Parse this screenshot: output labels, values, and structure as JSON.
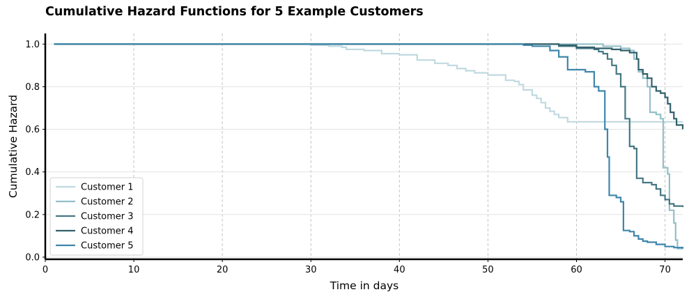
{
  "chart_data": {
    "type": "line",
    "title": "Cumulative Hazard Functions for 5 Example Customers",
    "xlabel": "Time in days",
    "ylabel": "Cumulative Hazard",
    "xlim": [
      0,
      72
    ],
    "ylim": [
      -0.01,
      1.05
    ],
    "x_ticks": [
      0,
      10,
      20,
      30,
      40,
      50,
      60,
      70
    ],
    "y_ticks": [
      "0.0",
      "0.2",
      "0.4",
      "0.6",
      "0.8",
      "1.0"
    ],
    "x_grid": "dashed",
    "y_grid": "solid",
    "legend_position": "lower-left",
    "series": [
      {
        "name": "Customer 1",
        "color": "#c0d9e0",
        "points": [
          [
            1,
            1.0
          ],
          [
            27,
            1.0
          ],
          [
            30,
            0.995
          ],
          [
            32,
            0.99
          ],
          [
            33.5,
            0.985
          ],
          [
            34,
            0.975
          ],
          [
            36,
            0.97
          ],
          [
            38,
            0.955
          ],
          [
            40,
            0.95
          ],
          [
            42,
            0.925
          ],
          [
            44,
            0.91
          ],
          [
            45.5,
            0.9
          ],
          [
            46.5,
            0.885
          ],
          [
            47.5,
            0.875
          ],
          [
            48.5,
            0.865
          ],
          [
            50,
            0.855
          ],
          [
            51.5,
            0.855
          ],
          [
            52,
            0.83
          ],
          [
            53,
            0.825
          ],
          [
            53.5,
            0.81
          ],
          [
            54,
            0.785
          ],
          [
            55,
            0.76
          ],
          [
            55.5,
            0.745
          ],
          [
            56,
            0.725
          ],
          [
            56.5,
            0.7
          ],
          [
            57,
            0.685
          ],
          [
            57.5,
            0.67
          ],
          [
            58,
            0.655
          ],
          [
            59,
            0.635
          ],
          [
            72,
            0.635
          ]
        ]
      },
      {
        "name": "Customer 2",
        "color": "#93bfc8",
        "points": [
          [
            1,
            1.0
          ],
          [
            60,
            1.0
          ],
          [
            63,
            0.99
          ],
          [
            65,
            0.98
          ],
          [
            66,
            0.97
          ],
          [
            66.5,
            0.93
          ],
          [
            67,
            0.87
          ],
          [
            67.5,
            0.84
          ],
          [
            68,
            0.8
          ],
          [
            68.3,
            0.68
          ],
          [
            69,
            0.67
          ],
          [
            69.5,
            0.65
          ],
          [
            69.8,
            0.42
          ],
          [
            70.3,
            0.39
          ],
          [
            70.5,
            0.22
          ],
          [
            71,
            0.16
          ],
          [
            71.2,
            0.08
          ],
          [
            71.4,
            0.04
          ],
          [
            72,
            0.04
          ]
        ]
      },
      {
        "name": "Customer 3",
        "color": "#457783",
        "points": [
          [
            1,
            1.0
          ],
          [
            55,
            1.0
          ],
          [
            58,
            0.99
          ],
          [
            60,
            0.98
          ],
          [
            62,
            0.975
          ],
          [
            62.5,
            0.965
          ],
          [
            63,
            0.955
          ],
          [
            63.5,
            0.93
          ],
          [
            64,
            0.9
          ],
          [
            64.5,
            0.86
          ],
          [
            65,
            0.8
          ],
          [
            65.5,
            0.65
          ],
          [
            66,
            0.52
          ],
          [
            66.5,
            0.51
          ],
          [
            66.8,
            0.37
          ],
          [
            67.5,
            0.35
          ],
          [
            68.5,
            0.34
          ],
          [
            69,
            0.32
          ],
          [
            69.5,
            0.29
          ],
          [
            70,
            0.27
          ],
          [
            70.5,
            0.25
          ],
          [
            71,
            0.24
          ],
          [
            72,
            0.235
          ]
        ]
      },
      {
        "name": "Customer 4",
        "color": "#31606b",
        "points": [
          [
            1,
            1.0
          ],
          [
            57,
            1.0
          ],
          [
            58,
            0.995
          ],
          [
            60,
            0.985
          ],
          [
            62,
            0.98
          ],
          [
            64,
            0.975
          ],
          [
            65,
            0.97
          ],
          [
            66,
            0.96
          ],
          [
            66.8,
            0.93
          ],
          [
            67,
            0.88
          ],
          [
            67.5,
            0.86
          ],
          [
            68,
            0.84
          ],
          [
            68.5,
            0.8
          ],
          [
            69,
            0.78
          ],
          [
            69.5,
            0.77
          ],
          [
            70,
            0.75
          ],
          [
            70.3,
            0.72
          ],
          [
            70.6,
            0.68
          ],
          [
            71,
            0.65
          ],
          [
            71.3,
            0.62
          ],
          [
            72,
            0.6
          ]
        ]
      },
      {
        "name": "Customer 5",
        "color": "#3d86ab",
        "points": [
          [
            1,
            1.0
          ],
          [
            50,
            1.0
          ],
          [
            54,
            0.995
          ],
          [
            55,
            0.99
          ],
          [
            57,
            0.97
          ],
          [
            58,
            0.94
          ],
          [
            59,
            0.88
          ],
          [
            60,
            0.88
          ],
          [
            61,
            0.87
          ],
          [
            62,
            0.8
          ],
          [
            62.5,
            0.78
          ],
          [
            63,
            0.78
          ],
          [
            63.2,
            0.6
          ],
          [
            63.5,
            0.47
          ],
          [
            63.7,
            0.29
          ],
          [
            64.5,
            0.28
          ],
          [
            65,
            0.26
          ],
          [
            65.3,
            0.125
          ],
          [
            66,
            0.12
          ],
          [
            66.5,
            0.1
          ],
          [
            67,
            0.085
          ],
          [
            67.5,
            0.075
          ],
          [
            68,
            0.07
          ],
          [
            69,
            0.06
          ],
          [
            70,
            0.05
          ],
          [
            71,
            0.045
          ],
          [
            72,
            0.04
          ]
        ]
      }
    ]
  }
}
